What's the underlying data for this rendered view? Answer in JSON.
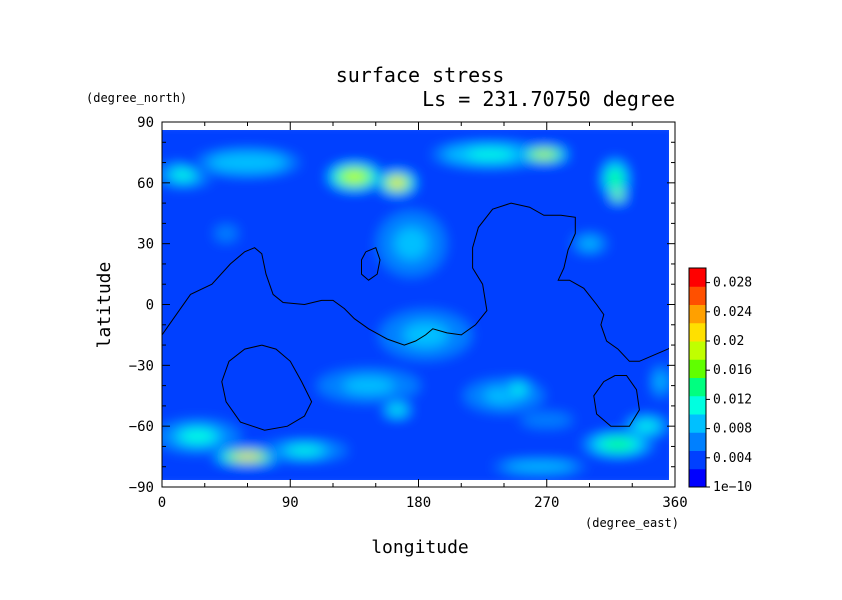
{
  "chart_data": {
    "type": "heatmap",
    "title": "surface stress",
    "subtitle": "Ls = 231.70750 degree",
    "xlabel": "longitude",
    "ylabel": "latitude",
    "x_units": "(degree_east)",
    "y_units": "(degree_north)",
    "xlim": [
      0,
      360
    ],
    "ylim": [
      -90,
      90
    ],
    "x_ticks": [
      "0",
      "90",
      "180",
      "270",
      "360"
    ],
    "y_ticks": [
      "90",
      "60",
      "30",
      "0",
      "−30",
      "−60",
      "−90"
    ],
    "x_tick_values": [
      0,
      90,
      180,
      270,
      360
    ],
    "y_tick_values": [
      90,
      60,
      30,
      0,
      -30,
      -60,
      -90
    ],
    "colorbar": {
      "min": 0,
      "max": 0.03,
      "tick_values": [
        0,
        0.004,
        0.008,
        0.012,
        0.016,
        0.02,
        0.024,
        0.028
      ],
      "tick_labels": [
        "1e−10",
        "0.004",
        "0.008",
        "0.012",
        "0.016",
        "0.02",
        "0.024",
        "0.028"
      ],
      "colors": [
        "#0000ff",
        "#0040ff",
        "#0080ff",
        "#00c0ff",
        "#00ffe0",
        "#00ff80",
        "#60ff00",
        "#c0ff00",
        "#ffe000",
        "#ffa000",
        "#ff5000",
        "#ff0000"
      ]
    },
    "background_value": 0.003,
    "features": [
      {
        "lon": 15,
        "lat": 64,
        "rlon": 20,
        "rlat": 6,
        "value": 0.011
      },
      {
        "lon": 60,
        "lat": 70,
        "rlon": 45,
        "rlat": 8,
        "value": 0.009
      },
      {
        "lon": 135,
        "lat": 63,
        "rlon": 20,
        "rlat": 7,
        "value": 0.019
      },
      {
        "lon": 165,
        "lat": 60,
        "rlon": 14,
        "rlat": 6,
        "value": 0.02
      },
      {
        "lon": 230,
        "lat": 74,
        "rlon": 40,
        "rlat": 6,
        "value": 0.012
      },
      {
        "lon": 268,
        "lat": 74,
        "rlon": 18,
        "rlat": 4,
        "value": 0.019
      },
      {
        "lon": 318,
        "lat": 62,
        "rlon": 10,
        "rlat": 10,
        "value": 0.013
      },
      {
        "lon": 320,
        "lat": 54,
        "rlon": 6,
        "rlat": 4,
        "value": 0.018
      },
      {
        "lon": 175,
        "lat": 30,
        "rlon": 30,
        "rlat": 20,
        "value": 0.008
      },
      {
        "lon": 185,
        "lat": -15,
        "rlon": 40,
        "rlat": 15,
        "value": 0.008
      },
      {
        "lon": 145,
        "lat": -40,
        "rlon": 45,
        "rlat": 10,
        "value": 0.008
      },
      {
        "lon": 165,
        "lat": -52,
        "rlon": 10,
        "rlat": 4,
        "value": 0.012
      },
      {
        "lon": 240,
        "lat": -45,
        "rlon": 35,
        "rlat": 10,
        "value": 0.008
      },
      {
        "lon": 250,
        "lat": -42,
        "rlon": 10,
        "rlat": 5,
        "value": 0.012
      },
      {
        "lon": 270,
        "lat": -57,
        "rlon": 30,
        "rlat": 6,
        "value": 0.006
      },
      {
        "lon": 25,
        "lat": -65,
        "rlon": 30,
        "rlat": 8,
        "value": 0.011
      },
      {
        "lon": 60,
        "lat": -75,
        "rlon": 25,
        "rlat": 4,
        "value": 0.02
      },
      {
        "lon": 100,
        "lat": -72,
        "rlon": 30,
        "rlat": 5,
        "value": 0.011
      },
      {
        "lon": 320,
        "lat": -69,
        "rlon": 25,
        "rlat": 6,
        "value": 0.013
      },
      {
        "lon": 265,
        "lat": -80,
        "rlon": 40,
        "rlat": 4,
        "value": 0.009
      },
      {
        "lon": 340,
        "lat": -60,
        "rlon": 15,
        "rlat": 5,
        "value": 0.012
      },
      {
        "lon": 300,
        "lat": 30,
        "rlon": 15,
        "rlat": 6,
        "value": 0.008
      },
      {
        "lon": 45,
        "lat": 35,
        "rlon": 10,
        "rlat": 5,
        "value": 0.007
      },
      {
        "lon": 350,
        "lat": -38,
        "rlon": 8,
        "rlat": 10,
        "value": 0.008
      }
    ],
    "contours": [
      [
        [
          0,
          -15
        ],
        [
          10,
          -5
        ],
        [
          20,
          5
        ],
        [
          35,
          10
        ],
        [
          48,
          20
        ],
        [
          58,
          26
        ],
        [
          65,
          28
        ],
        [
          70,
          25
        ],
        [
          73,
          15
        ],
        [
          78,
          5
        ],
        [
          85,
          1
        ],
        [
          100,
          0
        ],
        [
          112,
          2
        ],
        [
          120,
          2
        ],
        [
          128,
          -2
        ],
        [
          135,
          -7
        ],
        [
          145,
          -12
        ],
        [
          158,
          -17
        ],
        [
          170,
          -20
        ],
        [
          178,
          -18
        ],
        [
          185,
          -15
        ],
        [
          190,
          -12
        ],
        [
          200,
          -14
        ],
        [
          210,
          -15
        ],
        [
          220,
          -10
        ],
        [
          228,
          -3
        ],
        [
          225,
          10
        ],
        [
          218,
          18
        ],
        [
          218,
          28
        ],
        [
          222,
          38
        ],
        [
          232,
          47
        ],
        [
          245,
          50
        ],
        [
          258,
          48
        ],
        [
          268,
          44
        ],
        [
          280,
          44
        ],
        [
          290,
          43
        ],
        [
          290,
          35
        ],
        [
          285,
          27
        ],
        [
          282,
          18
        ],
        [
          278,
          12
        ],
        [
          286,
          12
        ],
        [
          296,
          8
        ],
        [
          305,
          0
        ],
        [
          310,
          -5
        ],
        [
          308,
          -10
        ],
        [
          312,
          -18
        ],
        [
          320,
          -22
        ],
        [
          328,
          -28
        ],
        [
          335,
          -28
        ],
        [
          345,
          -25
        ],
        [
          355,
          -22
        ],
        [
          360,
          -20
        ]
      ],
      [
        [
          70,
          -20
        ],
        [
          80,
          -22
        ],
        [
          90,
          -28
        ],
        [
          98,
          -38
        ],
        [
          105,
          -48
        ],
        [
          100,
          -55
        ],
        [
          88,
          -60
        ],
        [
          72,
          -62
        ],
        [
          55,
          -58
        ],
        [
          45,
          -48
        ],
        [
          42,
          -38
        ],
        [
          47,
          -28
        ],
        [
          58,
          -22
        ],
        [
          70,
          -20
        ]
      ],
      [
        [
          143,
          26
        ],
        [
          150,
          28
        ],
        [
          153,
          22
        ],
        [
          151,
          15
        ],
        [
          145,
          12
        ],
        [
          140,
          15
        ],
        [
          140,
          22
        ],
        [
          143,
          26
        ]
      ],
      [
        [
          318,
          -35
        ],
        [
          326,
          -35
        ],
        [
          333,
          -42
        ],
        [
          335,
          -52
        ],
        [
          328,
          -60
        ],
        [
          315,
          -60
        ],
        [
          305,
          -54
        ],
        [
          303,
          -45
        ],
        [
          310,
          -38
        ],
        [
          318,
          -35
        ]
      ]
    ]
  }
}
